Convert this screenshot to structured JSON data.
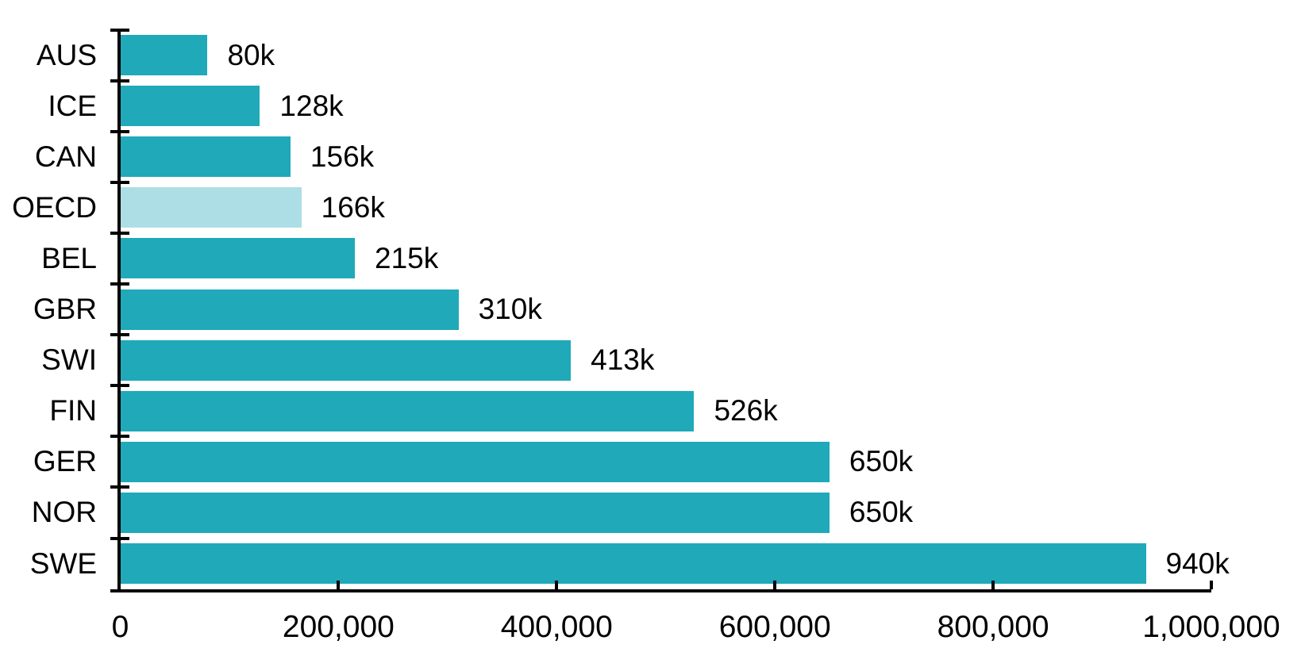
{
  "chart_data": {
    "type": "bar",
    "orientation": "horizontal",
    "title": "",
    "xlabel": "",
    "ylabel": "",
    "grid": false,
    "legend": null,
    "categories": [
      "AUS",
      "ICE",
      "CAN",
      "OECD",
      "BEL",
      "GBR",
      "SWI",
      "FIN",
      "GER",
      "NOR",
      "SWE"
    ],
    "values": [
      80000,
      128000,
      156000,
      166000,
      215000,
      310000,
      413000,
      526000,
      650000,
      650000,
      940000
    ],
    "value_labels": [
      "80k",
      "128k",
      "156k",
      "166k",
      "215k",
      "310k",
      "413k",
      "526k",
      "650k",
      "650k",
      "940k"
    ],
    "highlighted_category": "OECD",
    "colors": {
      "bar": "#1FA9B9",
      "highlight_bar": "#AEDEE5",
      "axis": "#000000",
      "text": "#000000",
      "background": "#FFFFFF"
    },
    "xlim": [
      0,
      1000000
    ],
    "x_tick_values": [
      0,
      200000,
      400000,
      600000,
      800000,
      1000000
    ],
    "x_tick_labels": [
      "0",
      "200,000",
      "400,000",
      "600,000",
      "800,000",
      "1,000,000"
    ]
  }
}
